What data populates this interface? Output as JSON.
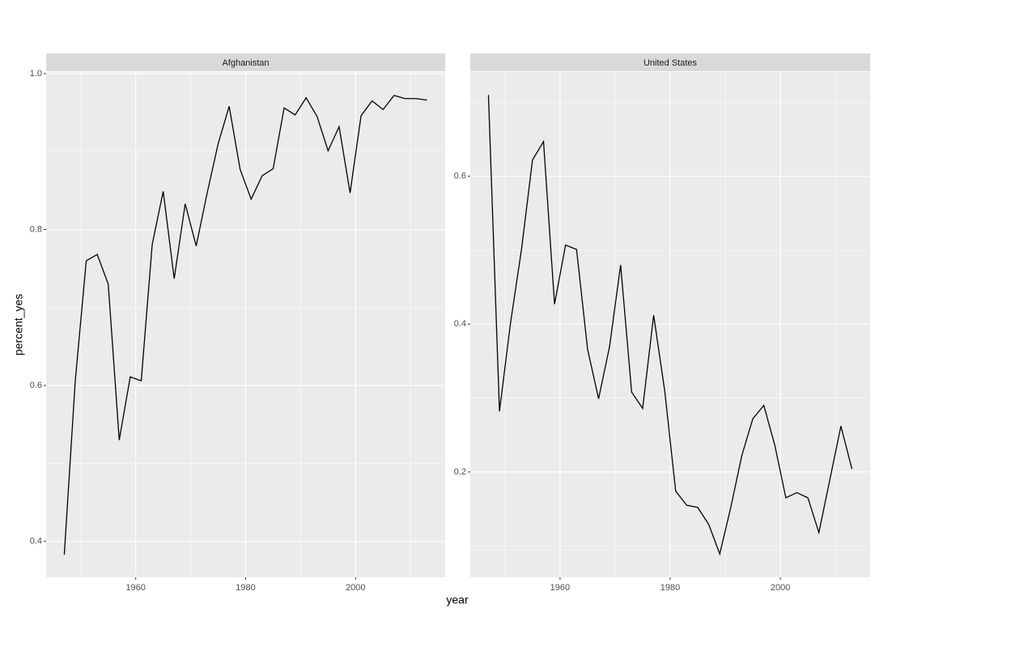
{
  "x_label": "year",
  "y_label": "percent_yes",
  "chart_data": [
    {
      "type": "line",
      "title": "Afghanistan",
      "color": "#000000",
      "grid": true,
      "x": [
        1947,
        1949,
        1951,
        1953,
        1955,
        1957,
        1959,
        1961,
        1963,
        1965,
        1967,
        1969,
        1971,
        1973,
        1975,
        1977,
        1979,
        1981,
        1983,
        1985,
        1987,
        1989,
        1991,
        1993,
        1995,
        1997,
        1999,
        2001,
        2003,
        2005,
        2007,
        2009,
        2011,
        2013
      ],
      "values": [
        0.383,
        0.606,
        0.76,
        0.768,
        0.73,
        0.53,
        0.611,
        0.606,
        0.781,
        0.849,
        0.737,
        0.833,
        0.779,
        0.847,
        0.91,
        0.958,
        0.877,
        0.839,
        0.869,
        0.878,
        0.956,
        0.947,
        0.969,
        0.945,
        0.901,
        0.932,
        0.847,
        0.946,
        0.965,
        0.954,
        0.972,
        0.968,
        0.968,
        0.966
      ],
      "xlim": [
        1943.7,
        2016.3
      ],
      "xticks": [
        1960,
        1980,
        2000
      ],
      "x_minor_ticks": [
        1950,
        1970,
        1990,
        2010
      ],
      "ylim": [
        0.354,
        1.002
      ],
      "yticks": [
        {
          "value": 0.4,
          "label": "0.4"
        },
        {
          "value": 0.6,
          "label": "0.6"
        },
        {
          "value": 0.8,
          "label": "0.8"
        },
        {
          "value": 1.0,
          "label": "1.0"
        }
      ],
      "y_minor_ticks": [
        0.5,
        0.7,
        0.9
      ]
    },
    {
      "type": "line",
      "title": "United States",
      "color": "#000000",
      "grid": true,
      "x": [
        1947,
        1949,
        1951,
        1953,
        1955,
        1957,
        1959,
        1961,
        1963,
        1965,
        1967,
        1969,
        1971,
        1973,
        1975,
        1977,
        1979,
        1981,
        1983,
        1985,
        1987,
        1989,
        1991,
        1993,
        1995,
        1997,
        1999,
        2001,
        2003,
        2005,
        2007,
        2009,
        2011,
        2013
      ],
      "values": [
        0.71,
        0.282,
        0.401,
        0.501,
        0.622,
        0.647,
        0.427,
        0.507,
        0.501,
        0.366,
        0.299,
        0.37,
        0.48,
        0.308,
        0.286,
        0.412,
        0.31,
        0.174,
        0.155,
        0.152,
        0.129,
        0.089,
        0.152,
        0.222,
        0.272,
        0.29,
        0.236,
        0.165,
        0.172,
        0.165,
        0.118,
        0.19,
        0.262,
        0.204
      ],
      "xlim": [
        1943.7,
        2016.3
      ],
      "xticks": [
        1960,
        1980,
        2000
      ],
      "x_minor_ticks": [
        1950,
        1970,
        1990,
        2010
      ],
      "ylim": [
        0.0575,
        0.741
      ],
      "yticks": [
        0.2,
        0.4,
        0.6
      ],
      "y_minor_ticks": [
        0.1,
        0.3,
        0.5,
        0.7
      ]
    }
  ]
}
